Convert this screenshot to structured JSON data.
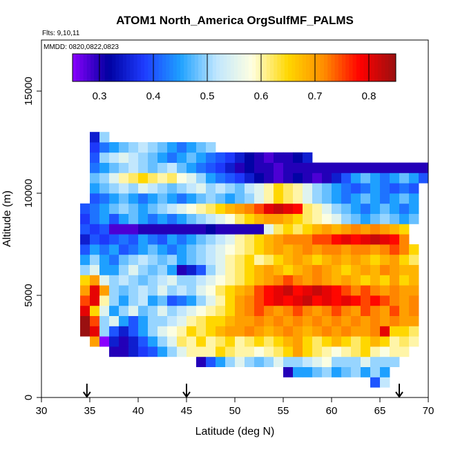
{
  "chart_data": {
    "type": "heatmap",
    "title": "ATOM1 North_America OrgSulfMF_PALMS",
    "flights_label": "Flts: 9,10,11",
    "dates_label": "MMDD: 0820,0822,0823",
    "xlabel": "Latitude (deg N)",
    "ylabel": "Altitude (m)",
    "xlim": [
      30,
      70
    ],
    "ylim": [
      0,
      17500
    ],
    "x_ticks": [
      "30",
      "35",
      "40",
      "45",
      "50",
      "55",
      "60",
      "65",
      "70"
    ],
    "y_ticks": [
      "0",
      "5000",
      "10000",
      "15000"
    ],
    "colorbar": {
      "range": [
        0.25,
        0.85
      ],
      "ticks": [
        "0.3",
        "0.4",
        "0.5",
        "0.6",
        "0.7",
        "0.8"
      ]
    },
    "arrows_at_latitude": [
      34.7,
      45,
      67
    ],
    "cell_size": {
      "latitude_deg": 1,
      "altitude_m": 500
    },
    "colors": {
      "scale": [
        "#8a00ff",
        "#0000a0",
        "#1e3cff",
        "#1ea0ff",
        "#bfe6ff",
        "#ffffe0",
        "#ffd700",
        "#ff8c00",
        "#ff0000",
        "#9a1010"
      ]
    },
    "rows": [
      {
        "alt": 750,
        "lat_start": 64,
        "values": [
          0.4,
          0.52
        ]
      },
      {
        "alt": 1250,
        "lat_start": 55,
        "values": [
          0.3,
          0.45,
          0.45,
          0.48,
          0.5,
          0.45,
          0.48,
          0.5,
          0.45,
          0.5,
          0.45
        ]
      },
      {
        "alt": 1750,
        "lat_start": 46,
        "values": [
          0.3,
          0.4,
          0.45,
          0.5,
          0.55,
          0.5,
          0.48,
          0.5,
          0.55,
          0.5,
          0.5,
          0.52,
          0.55,
          0.58,
          0.5,
          0.5,
          0.5,
          0.55,
          0.5,
          0.5,
          0.5
        ]
      },
      {
        "alt": 2250,
        "lat_start": 37,
        "values": [
          0.3,
          0.3,
          0.35,
          0.38,
          0.4,
          0.45,
          0.5,
          0.55,
          0.6,
          0.6,
          0.6,
          0.65,
          0.62,
          0.6,
          0.6,
          0.58,
          0.6,
          0.62,
          0.65,
          0.7,
          0.65,
          0.62,
          0.6,
          0.58,
          0.6,
          0.62,
          0.65,
          0.6,
          0.58,
          0.6,
          0.6
        ]
      },
      {
        "alt": 2750,
        "lat_start": 35,
        "values": [
          0.7,
          0.25,
          0.35,
          0.3,
          0.35,
          0.4,
          0.45,
          0.5,
          0.55,
          0.62,
          0.6,
          0.65,
          0.6,
          0.62,
          0.65,
          0.6,
          0.62,
          0.65,
          0.62,
          0.65,
          0.68,
          0.7,
          0.65,
          0.62,
          0.65,
          0.68,
          0.65,
          0.62,
          0.65,
          0.68,
          0.65,
          0.6,
          0.62,
          0.6
        ]
      },
      {
        "alt": 3250,
        "lat_start": 34,
        "values": [
          0.85,
          0.8,
          0.5,
          0.4,
          0.35,
          0.4,
          0.45,
          0.5,
          0.55,
          0.58,
          0.6,
          0.65,
          0.62,
          0.65,
          0.68,
          0.7,
          0.7,
          0.72,
          0.7,
          0.68,
          0.7,
          0.72,
          0.7,
          0.68,
          0.7,
          0.72,
          0.7,
          0.72,
          0.7,
          0.7,
          0.72,
          0.8,
          0.65,
          0.65,
          0.62
        ]
      },
      {
        "alt": 3750,
        "lat_start": 34,
        "values": [
          0.85,
          0.75,
          0.5,
          0.55,
          0.45,
          0.4,
          0.45,
          0.5,
          0.5,
          0.52,
          0.55,
          0.6,
          0.62,
          0.65,
          0.65,
          0.68,
          0.7,
          0.7,
          0.72,
          0.7,
          0.72,
          0.7,
          0.72,
          0.7,
          0.72,
          0.7,
          0.72,
          0.7,
          0.72,
          0.7,
          0.72,
          0.7,
          0.72,
          0.7,
          0.7
        ]
      },
      {
        "alt": 4250,
        "lat_start": 34,
        "values": [
          0.8,
          0.65,
          0.55,
          0.45,
          0.5,
          0.55,
          0.48,
          0.5,
          0.55,
          0.5,
          0.52,
          0.55,
          0.58,
          0.6,
          0.62,
          0.65,
          0.7,
          0.72,
          0.75,
          0.72,
          0.7,
          0.72,
          0.75,
          0.72,
          0.7,
          0.72,
          0.75,
          0.72,
          0.7,
          0.75,
          0.72,
          0.7,
          0.75,
          0.7,
          0.72
        ]
      },
      {
        "alt": 4750,
        "lat_start": 34,
        "values": [
          0.75,
          0.8,
          0.6,
          0.5,
          0.45,
          0.5,
          0.52,
          0.45,
          0.48,
          0.4,
          0.42,
          0.45,
          0.5,
          0.55,
          0.6,
          0.65,
          0.7,
          0.72,
          0.75,
          0.78,
          0.8,
          0.78,
          0.8,
          0.82,
          0.78,
          0.8,
          0.78,
          0.8,
          0.78,
          0.75,
          0.78,
          0.75,
          0.72,
          0.7,
          0.72
        ]
      },
      {
        "alt": 5250,
        "lat_start": 34,
        "values": [
          0.7,
          0.8,
          0.7,
          0.5,
          0.48,
          0.5,
          0.52,
          0.5,
          0.55,
          0.5,
          0.52,
          0.5,
          0.55,
          0.58,
          0.62,
          0.65,
          0.68,
          0.7,
          0.75,
          0.78,
          0.8,
          0.82,
          0.78,
          0.8,
          0.82,
          0.8,
          0.78,
          0.75,
          0.72,
          0.75,
          0.72,
          0.7,
          0.72,
          0.7,
          0.7
        ]
      },
      {
        "alt": 5750,
        "lat_start": 34,
        "values": [
          0.65,
          0.7,
          0.55,
          0.5,
          0.52,
          0.5,
          0.48,
          0.5,
          0.52,
          0.55,
          0.5,
          0.5,
          0.52,
          0.55,
          0.58,
          0.6,
          0.62,
          0.65,
          0.68,
          0.7,
          0.72,
          0.75,
          0.72,
          0.7,
          0.72,
          0.7,
          0.68,
          0.7,
          0.68,
          0.65,
          0.68,
          0.65,
          0.7,
          0.65,
          0.68
        ]
      },
      {
        "alt": 6250,
        "lat_start": 34,
        "values": [
          0.5,
          0.55,
          0.45,
          0.45,
          0.5,
          0.55,
          0.5,
          0.48,
          0.5,
          0.45,
          0.3,
          0.35,
          0.4,
          0.5,
          0.55,
          0.6,
          0.62,
          0.65,
          0.68,
          0.7,
          0.68,
          0.65,
          0.68,
          0.7,
          0.72,
          0.7,
          0.68,
          0.65,
          0.68,
          0.7,
          0.68,
          0.72,
          0.7,
          0.68,
          0.68
        ]
      },
      {
        "alt": 6750,
        "lat_start": 34,
        "values": [
          0.45,
          0.5,
          0.45,
          0.42,
          0.48,
          0.5,
          0.52,
          0.5,
          0.48,
          0.5,
          0.45,
          0.48,
          0.5,
          0.52,
          0.55,
          0.6,
          0.62,
          0.65,
          0.6,
          0.62,
          0.65,
          0.68,
          0.7,
          0.68,
          0.65,
          0.68,
          0.7,
          0.68,
          0.7,
          0.68,
          0.65,
          0.68,
          0.7,
          0.65,
          0.62
        ]
      },
      {
        "alt": 7250,
        "lat_start": 34,
        "values": [
          0.4,
          0.45,
          0.42,
          0.45,
          0.4,
          0.42,
          0.45,
          0.48,
          0.45,
          0.42,
          0.45,
          0.48,
          0.5,
          0.52,
          0.55,
          0.58,
          0.6,
          0.62,
          0.65,
          0.68,
          0.7,
          0.68,
          0.7,
          0.72,
          0.7,
          0.72,
          0.72,
          0.7,
          0.72,
          0.72,
          0.7,
          0.72,
          0.75,
          0.72,
          0.65
        ]
      },
      {
        "alt": 7750,
        "lat_start": 34,
        "values": [
          0.35,
          0.4,
          0.38,
          0.4,
          0.42,
          0.4,
          0.45,
          0.42,
          0.4,
          0.45,
          0.42,
          0.45,
          0.48,
          0.5,
          0.52,
          0.55,
          0.6,
          0.62,
          0.65,
          0.68,
          0.7,
          0.72,
          0.72,
          0.72,
          0.75,
          0.75,
          0.78,
          0.8,
          0.78,
          0.8,
          0.82,
          0.8,
          0.78,
          0.72
        ]
      },
      {
        "alt": 8250,
        "lat_start": 34,
        "values": [
          0.4,
          0.38,
          0.4,
          0.28,
          0.28,
          0.28,
          0.3,
          0.3,
          0.3,
          0.3,
          0.3,
          0.3,
          0.3,
          0.32,
          0.3,
          0.3,
          0.3,
          0.3,
          0.3,
          0.55,
          0.62,
          0.65,
          0.62,
          0.65,
          0.68,
          0.7,
          0.68,
          0.7,
          0.72,
          0.7,
          0.72,
          0.7,
          0.68,
          0.65
        ]
      },
      {
        "alt": 8750,
        "lat_start": 34,
        "values": [
          0.38,
          0.42,
          0.45,
          0.4,
          0.45,
          0.48,
          0.45,
          0.42,
          0.45,
          0.42,
          0.45,
          0.48,
          0.5,
          0.52,
          0.55,
          0.58,
          0.62,
          0.65,
          0.68,
          0.7,
          0.7,
          0.68,
          0.65,
          0.62,
          0.6,
          0.58,
          0.55,
          0.5,
          0.48,
          0.45,
          0.48,
          0.5,
          0.48,
          0.45,
          0.48
        ]
      },
      {
        "alt": 9250,
        "lat_start": 34,
        "values": [
          0.4,
          0.42,
          0.45,
          0.48,
          0.5,
          0.48,
          0.45,
          0.48,
          0.5,
          0.52,
          0.55,
          0.58,
          0.6,
          0.62,
          0.65,
          0.68,
          0.7,
          0.72,
          0.75,
          0.8,
          0.82,
          0.8,
          0.78,
          0.62,
          0.6,
          0.55,
          0.5,
          0.48,
          0.45,
          0.42,
          0.45,
          0.48,
          0.45,
          0.42,
          0.45
        ]
      },
      {
        "alt": 9750,
        "lat_start": 35,
        "values": [
          0.4,
          0.42,
          0.45,
          0.48,
          0.45,
          0.42,
          0.45,
          0.48,
          0.45,
          0.42,
          0.45,
          0.48,
          0.5,
          0.48,
          0.45,
          0.48,
          0.5,
          0.55,
          0.6,
          0.65,
          0.62,
          0.6,
          0.55,
          0.5,
          0.48,
          0.45,
          0.42,
          0.45,
          0.48,
          0.45,
          0.42,
          0.45,
          0.48,
          0.45
        ]
      },
      {
        "alt": 10250,
        "lat_start": 35,
        "values": [
          0.45,
          0.48,
          0.5,
          0.52,
          0.5,
          0.55,
          0.52,
          0.5,
          0.48,
          0.5,
          0.52,
          0.55,
          0.5,
          0.52,
          0.5,
          0.48,
          0.52,
          0.55,
          0.6,
          0.65,
          0.62,
          0.6,
          0.55,
          0.5,
          0.48,
          0.45,
          0.42,
          0.4,
          0.42,
          0.45,
          0.42,
          0.4,
          0.42,
          0.4
        ]
      },
      {
        "alt": 10750,
        "lat_start": 35,
        "values": [
          0.48,
          0.5,
          0.55,
          0.6,
          0.62,
          0.65,
          0.62,
          0.6,
          0.62,
          0.58,
          0.55,
          0.5,
          0.45,
          0.42,
          0.4,
          0.38,
          0.35,
          0.32,
          0.3,
          0.28,
          0.3,
          0.32,
          0.3,
          0.28,
          0.3,
          0.35,
          0.4,
          0.45,
          0.48,
          0.45,
          0.42,
          0.45,
          0.48,
          0.45,
          0.4
        ]
      },
      {
        "alt": 11250,
        "lat_start": 35,
        "values": [
          0.42,
          0.45,
          0.48,
          0.5,
          0.52,
          0.5,
          0.48,
          0.5,
          0.52,
          0.48,
          0.45,
          0.42,
          0.4,
          0.38,
          0.35,
          0.3,
          0.32,
          0.3,
          0.3,
          0.28,
          0.3,
          0.3,
          0.3,
          0.3,
          0.3,
          0.3,
          0.3,
          0.3,
          0.3,
          0.3,
          0.3,
          0.3,
          0.3,
          0.3,
          0.3
        ]
      },
      {
        "alt": 11750,
        "lat_start": 35,
        "values": [
          0.4,
          0.5,
          0.52,
          0.55,
          0.52,
          0.5,
          0.48,
          0.45,
          0.42,
          0.45,
          0.48,
          0.45,
          0.42,
          0.4,
          0.38,
          0.35,
          0.32,
          0.3,
          0.28,
          0.3,
          0.3,
          0.32,
          0.35
        ]
      },
      {
        "alt": 12250,
        "lat_start": 35,
        "values": [
          0.38,
          0.42,
          0.45,
          0.48,
          0.5,
          0.52,
          0.5,
          0.48,
          0.45,
          0.42,
          0.45,
          0.48,
          0.5
        ]
      },
      {
        "alt": 12750,
        "lat_start": 35,
        "values": [
          0.35,
          0.5
        ]
      }
    ]
  }
}
